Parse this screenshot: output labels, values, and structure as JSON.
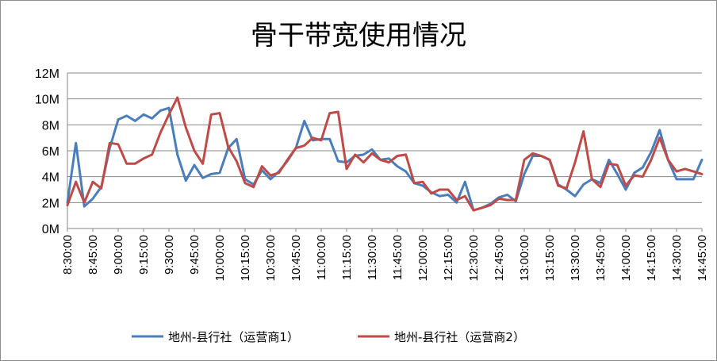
{
  "chart_data": {
    "type": "line",
    "title": "骨干带宽使用情况",
    "xlabel": "",
    "ylabel": "",
    "ylim": [
      0,
      12
    ],
    "y_unit": "M",
    "y_ticks": [
      "0M",
      "2M",
      "4M",
      "6M",
      "8M",
      "10M",
      "12M"
    ],
    "x_tick_labels": [
      "8:30:00",
      "8:45:00",
      "9:00:00",
      "9:15:00",
      "9:30:00",
      "9:45:00",
      "10:00:00",
      "10:15:00",
      "10:30:00",
      "10:45:00",
      "11:00:00",
      "11:15:00",
      "11:30:00",
      "11:45:00",
      "12:00:00",
      "12:15:00",
      "12:30:00",
      "12:45:00",
      "13:00:00",
      "13:15:00",
      "13:30:00",
      "13:45:00",
      "14:00:00",
      "14:15:00",
      "14:30:00",
      "14:45:00"
    ],
    "grid": true,
    "legend_position": "bottom",
    "colors": {
      "series1": "#4a7ebb",
      "series2": "#be4b48"
    },
    "series": [
      {
        "name": "地州-县行社（运营商1）",
        "values": [
          2.0,
          6.6,
          1.7,
          2.3,
          3.2,
          6.2,
          8.4,
          8.7,
          8.3,
          8.8,
          8.5,
          9.1,
          9.3,
          5.7,
          3.7,
          4.9,
          3.9,
          4.2,
          4.3,
          6.2,
          6.9,
          3.8,
          3.4,
          4.5,
          3.8,
          4.4,
          5.2,
          6.2,
          8.3,
          6.8,
          6.9,
          6.9,
          5.2,
          5.1,
          5.6,
          5.7,
          6.1,
          5.3,
          5.4,
          4.8,
          4.4,
          3.5,
          3.3,
          2.8,
          2.5,
          2.6,
          2.0,
          3.6,
          1.4,
          1.6,
          1.9,
          2.4,
          2.6,
          2.1,
          4.2,
          5.6,
          5.6,
          5.3,
          3.4,
          3.0,
          2.5,
          3.4,
          3.8,
          3.5,
          5.3,
          4.2,
          3.0,
          4.3,
          4.7,
          5.9,
          7.6,
          5.3,
          3.8,
          3.8,
          3.8,
          5.3
        ]
      },
      {
        "name": "地州-县行社（运营商2）",
        "values": [
          1.8,
          3.6,
          2.0,
          3.6,
          3.1,
          6.6,
          6.5,
          5.0,
          5.0,
          5.4,
          5.7,
          7.4,
          8.8,
          10.1,
          7.8,
          6.0,
          5.0,
          8.8,
          8.9,
          6.3,
          5.2,
          3.5,
          3.2,
          4.8,
          4.1,
          4.3,
          5.3,
          6.2,
          6.4,
          7.0,
          6.8,
          8.9,
          9.0,
          4.6,
          5.7,
          5.1,
          5.8,
          5.3,
          5.1,
          5.6,
          5.7,
          3.5,
          3.6,
          2.7,
          3.0,
          3.0,
          2.2,
          2.5,
          1.4,
          1.6,
          1.8,
          2.3,
          2.2,
          2.2,
          5.3,
          5.8,
          5.6,
          5.3,
          3.3,
          3.1,
          5.1,
          7.5,
          3.8,
          3.2,
          5.0,
          4.9,
          3.3,
          4.1,
          4.0,
          5.3,
          7.0,
          5.3,
          4.4,
          4.6,
          4.4,
          4.2
        ]
      }
    ]
  }
}
